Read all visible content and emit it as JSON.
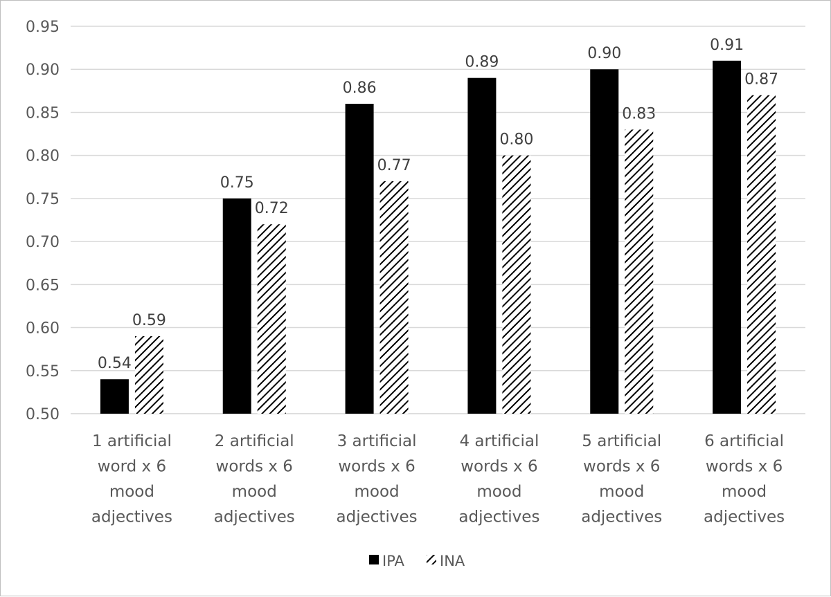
{
  "chart_data": {
    "type": "bar",
    "title": "",
    "xlabel": "",
    "ylabel": "",
    "ylim": [
      0.5,
      0.95
    ],
    "yticks": [
      0.5,
      0.55,
      0.6,
      0.65,
      0.7,
      0.75,
      0.8,
      0.85,
      0.9,
      0.95
    ],
    "ytick_labels": [
      "0.50",
      "0.55",
      "0.60",
      "0.65",
      "0.70",
      "0.75",
      "0.80",
      "0.85",
      "0.90",
      "0.95"
    ],
    "grid": true,
    "legend_position": "bottom",
    "categories": [
      [
        "1 artificial",
        "word x 6",
        "mood",
        "adjectives"
      ],
      [
        "2 artificial",
        "words x 6",
        "mood",
        "adjectives"
      ],
      [
        "3 artificial",
        "words x 6",
        "mood",
        "adjectives"
      ],
      [
        "4 artificial",
        "words x 6",
        "mood",
        "adjectives"
      ],
      [
        "5 artificial",
        "words x 6",
        "mood",
        "adjectives"
      ],
      [
        "6 artificial",
        "words x 6",
        "mood",
        "adjectives"
      ]
    ],
    "series": [
      {
        "name": "IPA",
        "fill": "solid",
        "color": "#000000",
        "values": [
          0.54,
          0.75,
          0.86,
          0.89,
          0.9,
          0.91
        ],
        "labels": [
          "0.54",
          "0.75",
          "0.86",
          "0.89",
          "0.90",
          "0.91"
        ]
      },
      {
        "name": "INA",
        "fill": "hatched",
        "color": "#000000",
        "values": [
          0.59,
          0.72,
          0.77,
          0.8,
          0.83,
          0.87
        ],
        "labels": [
          "0.59",
          "0.72",
          "0.77",
          "0.80",
          "0.83",
          "0.87"
        ]
      }
    ],
    "colors": {
      "grid": "#d9d9d9",
      "text": "#595959",
      "frame": "#bfbfbf"
    }
  }
}
